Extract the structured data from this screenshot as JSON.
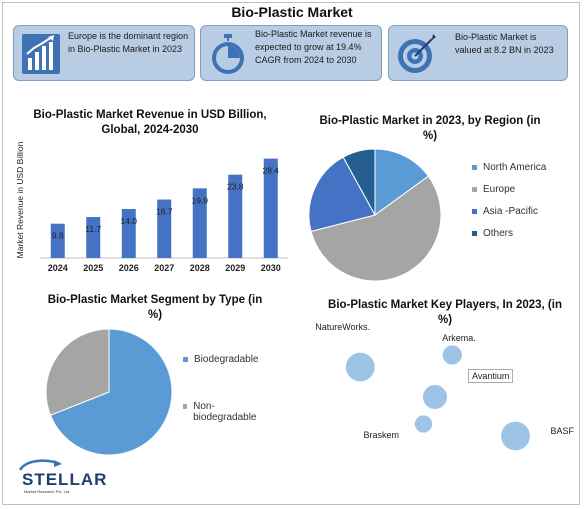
{
  "title": "Bio-Plastic Market",
  "cards": [
    {
      "text": "Europe is the dominant region in Bio-Plastic Market in 2023",
      "icon": "bar-growth-icon"
    },
    {
      "text": "Bio-Plastic Market revenue is expected to grow at 19.4% CAGR from 2024 to 2030",
      "icon": "stopwatch-icon"
    },
    {
      "text": "Bio-Plastic Market is valued at 8.2 BN in 2023",
      "icon": "target-icon"
    }
  ],
  "colors": {
    "bar": "#4472c4",
    "card_bg": "#b8cde3",
    "north_america": "#5b9bd5",
    "europe": "#a5a5a5",
    "asia_pacific": "#4472c4",
    "others": "#255e91",
    "bubble": "#9dc3e6"
  },
  "chart_data": [
    {
      "type": "bar",
      "title": "Bio-Plastic Market Revenue in USD Billion, Global, 2024-2030",
      "xlabel": "",
      "ylabel": "Market Revenue in USD Billion",
      "categories": [
        "2024",
        "2025",
        "2026",
        "2027",
        "2028",
        "2029",
        "2030"
      ],
      "values": [
        9.8,
        11.7,
        14.0,
        16.7,
        19.9,
        23.8,
        28.4
      ],
      "value_labels": [
        "9.8",
        "11.7",
        "14.0",
        "16.7",
        "19.9",
        "23.8",
        "28.4"
      ],
      "ylim": [
        0,
        30
      ]
    },
    {
      "type": "pie",
      "title": "Bio-Plastic Market in 2023, by Region (in %)",
      "labels": [
        "North America",
        "Europe",
        "Asia -Pacific",
        "Others"
      ],
      "values": [
        15,
        56,
        21,
        8
      ],
      "legend": "right"
    },
    {
      "type": "pie",
      "title": "Bio-Plastic Market Segment by Type (in %)",
      "labels": [
        "Biodegradable",
        "Non-biodegradable"
      ],
      "values": [
        69,
        31
      ],
      "legend": "right"
    },
    {
      "type": "scatter",
      "title": "Bio-Plastic Market Key Players, In 2023, (in %)",
      "points": [
        {
          "label": "NatureWorks.",
          "x": 1.2,
          "y": 3.6,
          "size": 3
        },
        {
          "label": "Arkema.",
          "x": 2.8,
          "y": 4.0,
          "size": 2
        },
        {
          "label": "Avantium",
          "x": 2.5,
          "y": 2.6,
          "size": 2.5
        },
        {
          "label": "Braskem",
          "x": 2.3,
          "y": 1.7,
          "size": 1.8
        },
        {
          "label": "BASF",
          "x": 3.9,
          "y": 1.3,
          "size": 3
        }
      ]
    }
  ],
  "logo": {
    "name": "STELLAR",
    "tagline": "Market Research Pvt. Ltd."
  }
}
